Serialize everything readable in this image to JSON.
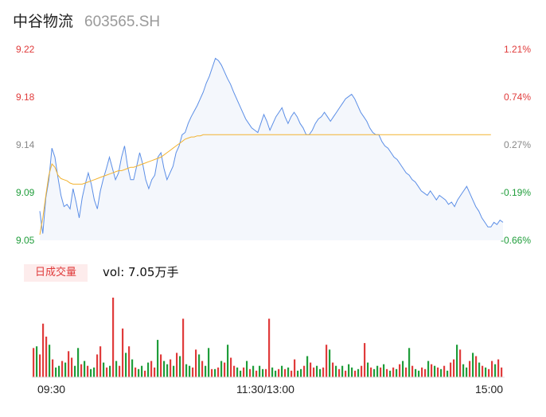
{
  "header": {
    "name": "中谷物流",
    "code": "603565.SH"
  },
  "colors": {
    "up": "#e03b3b",
    "down": "#1f9d3a",
    "neutral": "#888888",
    "price_line": "#5b8ee6",
    "avg_line": "#f2b330"
  },
  "chart_data": [
    {
      "type": "line",
      "title": "",
      "y_left_ticks": [
        "9.22",
        "9.18",
        "9.14",
        "9.09",
        "9.05"
      ],
      "y_right_ticks": [
        "1.21%",
        "0.74%",
        "0.27%",
        "-0.19%",
        "-0.66%"
      ],
      "ylim": [
        9.05,
        9.22
      ],
      "x_ticks": [
        "09:30",
        "11:30/13:00",
        "15:00"
      ],
      "series": [
        {
          "role": "price",
          "values": [
            9.076,
            9.056,
            9.088,
            9.104,
            9.132,
            9.124,
            9.106,
            9.09,
            9.08,
            9.082,
            9.078,
            9.096,
            9.084,
            9.07,
            9.088,
            9.1,
            9.11,
            9.1,
            9.086,
            9.078,
            9.094,
            9.105,
            9.114,
            9.124,
            9.114,
            9.104,
            9.11,
            9.124,
            9.134,
            9.116,
            9.104,
            9.104,
            9.116,
            9.128,
            9.118,
            9.104,
            9.096,
            9.104,
            9.108,
            9.124,
            9.128,
            9.114,
            9.104,
            9.11,
            9.116,
            9.128,
            9.134,
            9.144,
            9.146,
            9.154,
            9.16,
            9.165,
            9.17,
            9.176,
            9.182,
            9.19,
            9.196,
            9.204,
            9.212,
            9.21,
            9.206,
            9.2,
            9.194,
            9.189,
            9.182,
            9.176,
            9.17,
            9.164,
            9.158,
            9.154,
            9.15,
            9.148,
            9.146,
            9.154,
            9.162,
            9.156,
            9.148,
            9.154,
            9.16,
            9.164,
            9.168,
            9.16,
            9.154,
            9.16,
            9.164,
            9.16,
            9.154,
            9.15,
            9.144,
            9.144,
            9.148,
            9.154,
            9.158,
            9.16,
            9.164,
            9.16,
            9.156,
            9.16,
            9.164,
            9.168,
            9.172,
            9.176,
            9.178,
            9.18,
            9.176,
            9.17,
            9.164,
            9.16,
            9.156,
            9.15,
            9.146,
            9.144,
            9.144,
            9.138,
            9.134,
            9.132,
            9.128,
            9.124,
            9.122,
            9.118,
            9.114,
            9.11,
            9.108,
            9.104,
            9.102,
            9.098,
            9.094,
            9.092,
            9.09,
            9.094,
            9.09,
            9.086,
            9.09,
            9.088,
            9.086,
            9.082,
            9.084,
            9.08,
            9.086,
            9.09,
            9.094,
            9.098,
            9.092,
            9.086,
            9.08,
            9.076,
            9.07,
            9.066,
            9.062,
            9.062,
            9.066,
            9.064,
            9.068,
            9.066
          ]
        },
        {
          "role": "average",
          "values": [
            9.055,
            9.07,
            9.09,
            9.108,
            9.118,
            9.115,
            9.108,
            9.105,
            9.104,
            9.103,
            9.101,
            9.1,
            9.1,
            9.1,
            9.1,
            9.101,
            9.102,
            9.103,
            9.104,
            9.105,
            9.106,
            9.107,
            9.108,
            9.109,
            9.11,
            9.111,
            9.112,
            9.112,
            9.113,
            9.114,
            9.115,
            9.115,
            9.116,
            9.117,
            9.118,
            9.119,
            9.12,
            9.121,
            9.122,
            9.123,
            9.124,
            9.126,
            9.128,
            9.13,
            9.132,
            9.134,
            9.136,
            9.138,
            9.14,
            9.141,
            9.142,
            9.142,
            9.143,
            9.143,
            9.144,
            9.144,
            9.144,
            9.144,
            9.144,
            9.144,
            9.144,
            9.144,
            9.144,
            9.144,
            9.144,
            9.144,
            9.144,
            9.144,
            9.144,
            9.144,
            9.144,
            9.144,
            9.144,
            9.144,
            9.144,
            9.144,
            9.144,
            9.144,
            9.144,
            9.144,
            9.144,
            9.144,
            9.144,
            9.144,
            9.144,
            9.144,
            9.144,
            9.144,
            9.144,
            9.144,
            9.144,
            9.144,
            9.144,
            9.144,
            9.144,
            9.144,
            9.144,
            9.144,
            9.144,
            9.144,
            9.144,
            9.144,
            9.144,
            9.144,
            9.144,
            9.144,
            9.144,
            9.144,
            9.144,
            9.144,
            9.144,
            9.144,
            9.144,
            9.144,
            9.144,
            9.144,
            9.144,
            9.144,
            9.144,
            9.144,
            9.144,
            9.144,
            9.144,
            9.144,
            9.144,
            9.144,
            9.144,
            9.144,
            9.144,
            9.144,
            9.144,
            9.144,
            9.144,
            9.144,
            9.144,
            9.144,
            9.144,
            9.144,
            9.144,
            9.144,
            9.144,
            9.144,
            9.144,
            9.144,
            9.144,
            9.144,
            9.144,
            9.144,
            9.144,
            9.144
          ]
        }
      ]
    },
    {
      "type": "bar",
      "title": "日成交量",
      "label": "vol: 7.05万手",
      "values": [
        36,
        38,
        28,
        66,
        50,
        40,
        22,
        12,
        14,
        20,
        18,
        32,
        24,
        14,
        36,
        16,
        20,
        14,
        10,
        12,
        28,
        38,
        18,
        12,
        14,
        98,
        20,
        14,
        60,
        30,
        38,
        22,
        12,
        10,
        14,
        8,
        18,
        20,
        12,
        46,
        28,
        20,
        16,
        22,
        14,
        30,
        26,
        72,
        16,
        14,
        12,
        34,
        28,
        20,
        14,
        36,
        10,
        10,
        12,
        20,
        18,
        40,
        24,
        14,
        12,
        8,
        12,
        20,
        10,
        14,
        8,
        14,
        10,
        10,
        72,
        12,
        8,
        10,
        14,
        10,
        12,
        8,
        22,
        8,
        10,
        14,
        26,
        18,
        12,
        14,
        10,
        12,
        40,
        34,
        18,
        14,
        10,
        14,
        8,
        16,
        12,
        8,
        10,
        14,
        42,
        18,
        12,
        10,
        14,
        12,
        16,
        10,
        8,
        12,
        10,
        16,
        20,
        12,
        36,
        14,
        10,
        8,
        12,
        10,
        20,
        16,
        14,
        12,
        10,
        14,
        8,
        18,
        22,
        40,
        34,
        16,
        12,
        20,
        30,
        26,
        18,
        14,
        12,
        10,
        20,
        16,
        22,
        12
      ],
      "up": [
        true,
        false,
        true,
        true,
        true,
        false,
        true,
        false,
        false,
        true,
        false,
        true,
        true,
        false,
        false,
        true,
        false,
        true,
        false,
        false,
        true,
        true,
        false,
        true,
        false,
        true,
        false,
        true,
        true,
        false,
        true,
        false,
        true,
        false,
        false,
        true,
        false,
        true,
        true,
        false,
        true,
        false,
        false,
        true,
        false,
        true,
        false,
        true,
        false,
        false,
        true,
        true,
        false,
        true,
        false,
        false,
        true,
        false,
        true,
        false,
        true,
        false,
        true,
        true,
        false,
        false,
        true,
        false,
        true,
        false,
        true,
        false,
        false,
        true,
        true,
        false,
        false,
        true,
        false,
        true,
        false,
        true,
        true,
        false,
        false,
        true,
        false,
        true,
        true,
        false,
        false,
        true,
        true,
        false,
        true,
        false,
        true,
        false,
        true,
        false,
        false,
        true,
        false,
        true,
        true,
        false,
        true,
        false,
        false,
        true,
        false,
        true,
        false,
        true,
        false,
        true,
        false,
        true,
        false,
        true,
        false,
        false,
        true,
        true,
        false,
        true,
        false,
        true,
        false,
        true,
        false,
        true,
        true,
        false,
        true,
        false,
        false,
        true,
        false,
        true,
        false,
        true,
        false,
        true,
        true,
        false,
        true,
        true
      ]
    }
  ]
}
